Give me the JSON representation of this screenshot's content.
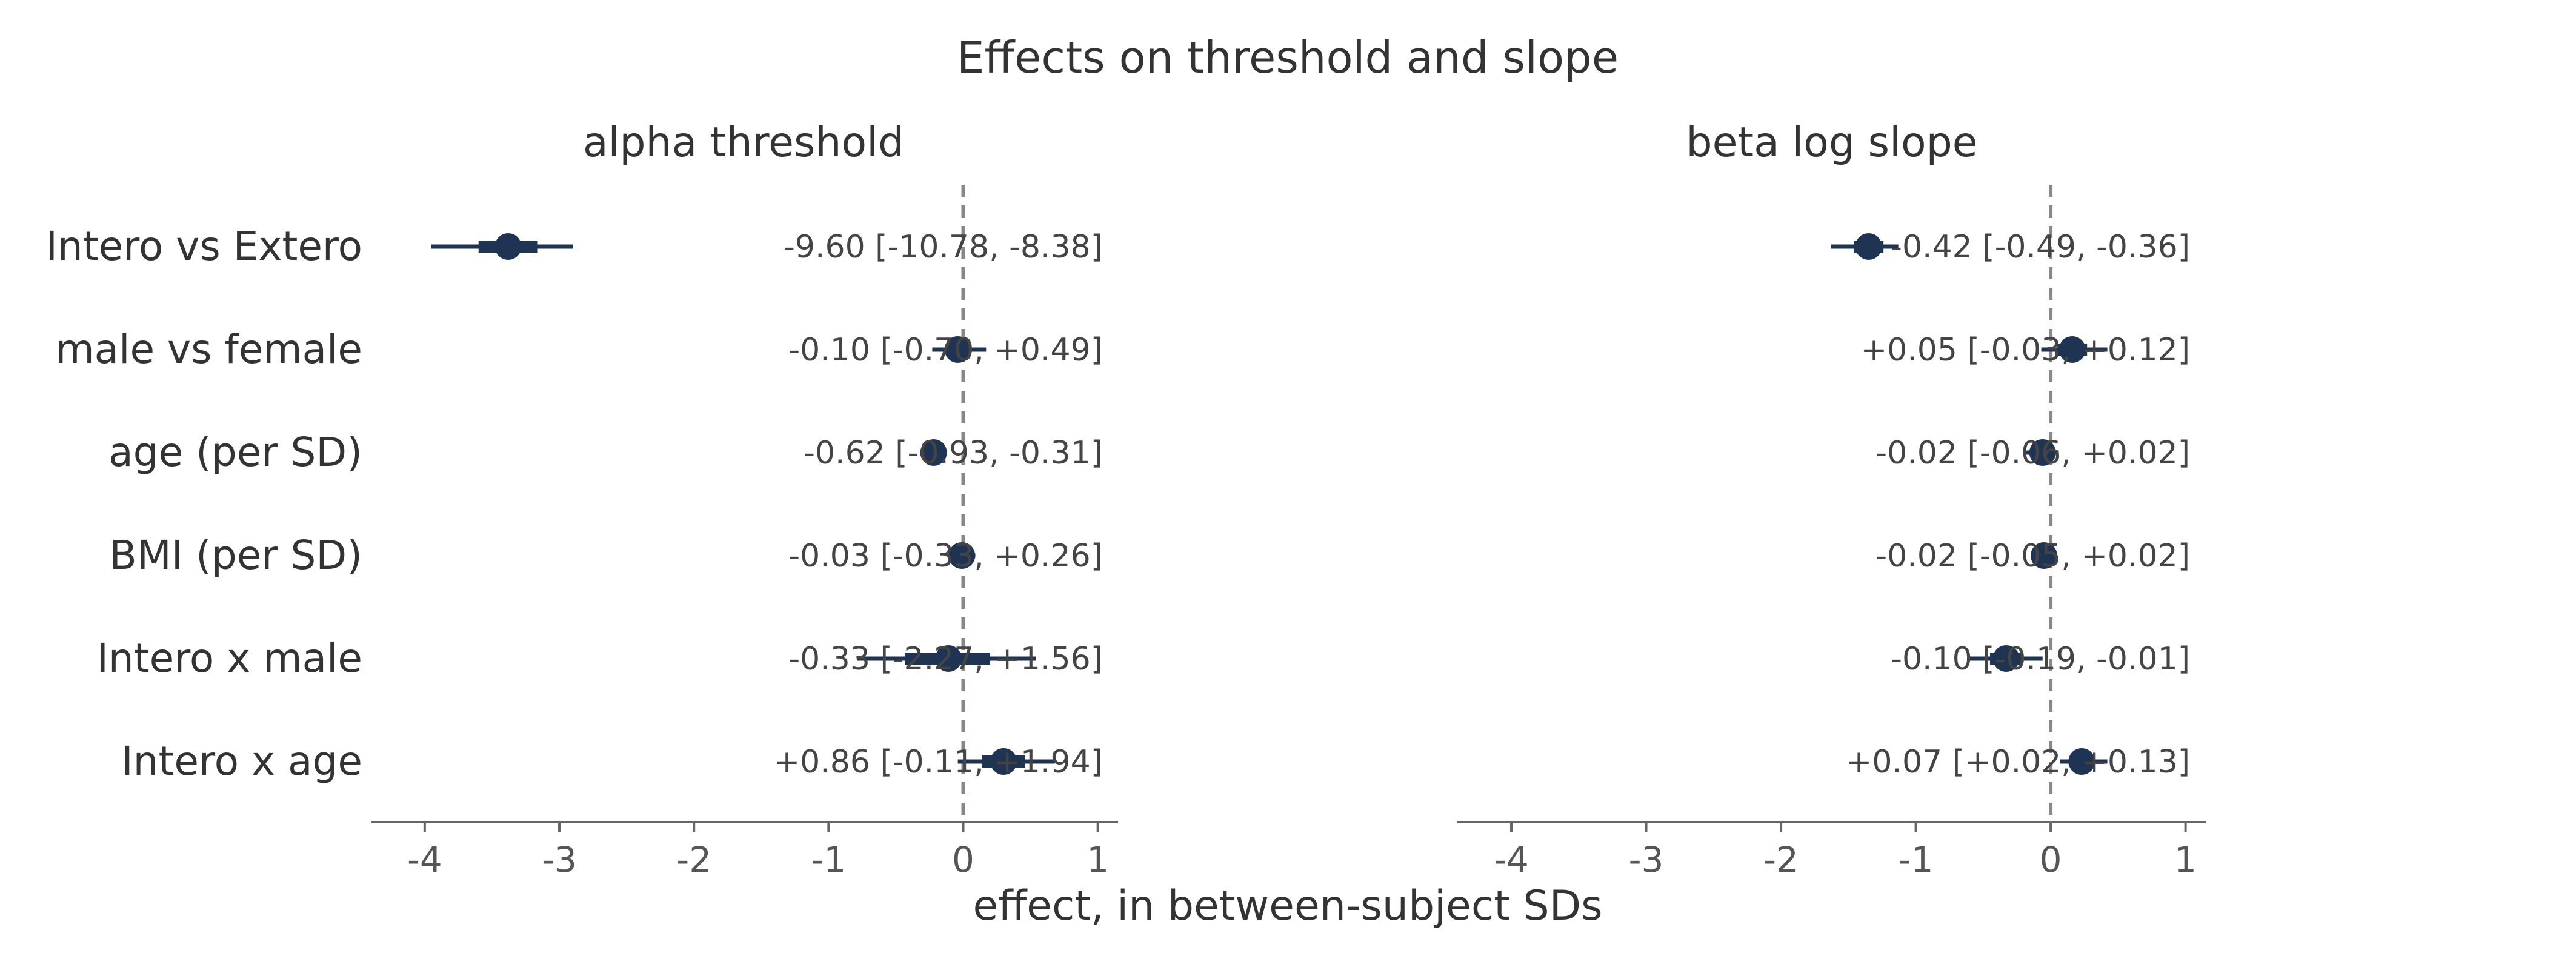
{
  "title": "Effects on threshold and slope",
  "xlabel": "effect, in between-subject SDs",
  "colors": {
    "marker": "#1f3352",
    "zero_line": "#888888",
    "axis": "#666666",
    "text": "#333333",
    "annotation": "#444444"
  },
  "chart_data": [
    {
      "type": "forest",
      "title": "alpha  threshold",
      "xlim": [
        -4.4,
        1.15
      ],
      "xticks": [
        -4,
        -3,
        -2,
        -1,
        0,
        1
      ],
      "xtick_labels": [
        "-4",
        "-3",
        "-2",
        "-1",
        "0",
        "1"
      ],
      "zero_line": 0,
      "categories": [
        "Intero vs Extero",
        "male vs female",
        "age (per SD)",
        "BMI (per SD)",
        "Intero x male",
        "Intero x age"
      ],
      "points": [
        {
          "estimate": -3.38,
          "inner_interval": [
            -3.6,
            -3.16
          ],
          "outer_interval": [
            -3.95,
            -2.9
          ],
          "annotation": "-9.60 [-10.78, -8.38]"
        },
        {
          "estimate": -0.04,
          "inner_interval": [
            -0.12,
            0.04
          ],
          "outer_interval": [
            -0.23,
            0.17
          ],
          "annotation": "-0.10 [-0.70, +0.49]"
        },
        {
          "estimate": -0.22,
          "inner_interval": [
            -0.27,
            -0.17
          ],
          "outer_interval": [
            -0.32,
            -0.12
          ],
          "annotation": "-0.62 [-0.93, -0.31]"
        },
        {
          "estimate": -0.01,
          "inner_interval": [
            -0.06,
            0.04
          ],
          "outer_interval": [
            -0.11,
            0.09
          ],
          "annotation": "-0.03 [-0.33, +0.26]"
        },
        {
          "estimate": -0.11,
          "inner_interval": [
            -0.43,
            0.2
          ],
          "outer_interval": [
            -0.79,
            0.54
          ],
          "annotation": "-0.33 [-2.27, +1.56]"
        },
        {
          "estimate": 0.3,
          "inner_interval": [
            0.14,
            0.46
          ],
          "outer_interval": [
            -0.04,
            0.68
          ],
          "annotation": "+0.86 [-0.11, +1.94]"
        }
      ]
    },
    {
      "type": "forest",
      "title": "beta  log slope",
      "xlim": [
        -4.4,
        1.15
      ],
      "xticks": [
        -4,
        -3,
        -2,
        -1,
        0,
        1
      ],
      "xtick_labels": [
        "-4",
        "-3",
        "-2",
        "-1",
        "0",
        "1"
      ],
      "zero_line": 0,
      "categories": [
        "Intero vs Extero",
        "male vs female",
        "age (per SD)",
        "BMI (per SD)",
        "Intero x male",
        "Intero x age"
      ],
      "points": [
        {
          "estimate": -1.35,
          "inner_interval": [
            -1.46,
            -1.24
          ],
          "outer_interval": [
            -1.63,
            -1.13
          ],
          "annotation": "-0.42 [-0.49, -0.36]"
        },
        {
          "estimate": 0.16,
          "inner_interval": [
            0.05,
            0.27
          ],
          "outer_interval": [
            -0.07,
            0.42
          ],
          "annotation": "+0.05 [-0.03, +0.12]"
        },
        {
          "estimate": -0.06,
          "inner_interval": [
            -0.1,
            -0.02
          ],
          "outer_interval": [
            -0.18,
            0.06
          ],
          "annotation": "-0.02 [-0.06, +0.02]"
        },
        {
          "estimate": -0.05,
          "inner_interval": [
            -0.08,
            -0.02
          ],
          "outer_interval": [
            -0.11,
            0.02
          ],
          "annotation": "-0.02 [-0.05, +0.02]"
        },
        {
          "estimate": -0.33,
          "inner_interval": [
            -0.45,
            -0.21
          ],
          "outer_interval": [
            -0.62,
            -0.06
          ],
          "annotation": "-0.10 [-0.19, -0.01]"
        },
        {
          "estimate": 0.23,
          "inner_interval": [
            0.15,
            0.31
          ],
          "outer_interval": [
            0.07,
            0.42
          ],
          "annotation": "+0.07 [+0.02, +0.13]"
        }
      ]
    }
  ]
}
